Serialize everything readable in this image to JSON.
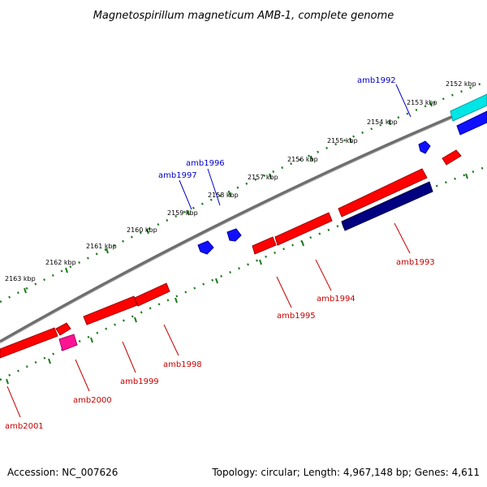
{
  "title": "Magnetospirillum magneticum AMB-1, complete genome",
  "footer": {
    "accession": "Accession: NC_007626",
    "summary": "Topology: circular; Length: 4,967,148 bp; Genes: 4,611"
  },
  "ticks": [
    "2152 kbp",
    "2153 kbp",
    "2154 kbp",
    "2155 kbp",
    "2156 kbp",
    "2157 kbp",
    "2158 kbp",
    "2159 kbp",
    "2160 kbp",
    "2161 kbp",
    "2162 kbp",
    "2163 kbp"
  ],
  "genes_top": [
    {
      "name": "amb1992",
      "color": "#0000c8"
    },
    {
      "name": "amb1996",
      "color": "#0000c8"
    },
    {
      "name": "amb1997",
      "color": "#0000c8"
    }
  ],
  "genes_bottom": [
    {
      "name": "amb1993",
      "color": "#c80000"
    },
    {
      "name": "amb1994",
      "color": "#c80000"
    },
    {
      "name": "amb1995",
      "color": "#c80000"
    },
    {
      "name": "amb1998",
      "color": "#c80000"
    },
    {
      "name": "amb1999",
      "color": "#c80000"
    },
    {
      "name": "amb2000",
      "color": "#c80000"
    },
    {
      "name": "amb2001",
      "color": "#c80000"
    }
  ],
  "colors": {
    "backbone": "#808080",
    "tick_marks": "#1f7a1f",
    "forward_feature": "#ff0000",
    "reverse_feature": "#0000ff",
    "dark_feature": "#000080",
    "cyan_feature": "#00e5e5",
    "pink_feature": "#ff1493"
  }
}
